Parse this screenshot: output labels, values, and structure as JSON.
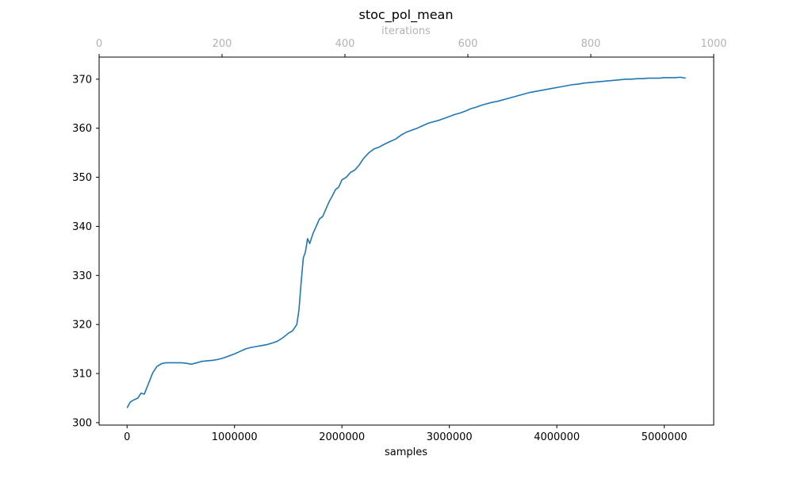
{
  "chart_data": {
    "type": "line",
    "title": "stoc_pol_mean",
    "xlabel": "samples",
    "x2label": "iterations",
    "ylabel": "",
    "xlim": [
      -260000,
      5460000
    ],
    "ylim": [
      299.5,
      374.5
    ],
    "x2lim": [
      0,
      1000
    ],
    "xticks": [
      0,
      1000000,
      2000000,
      3000000,
      4000000,
      5000000
    ],
    "xtick_labels": [
      "0",
      "1000000",
      "2000000",
      "3000000",
      "4000000",
      "5000000"
    ],
    "yticks": [
      300,
      310,
      320,
      330,
      340,
      350,
      360,
      370
    ],
    "ytick_labels": [
      "300",
      "310",
      "320",
      "330",
      "340",
      "350",
      "360",
      "370"
    ],
    "x2ticks": [
      0,
      200,
      400,
      600,
      800,
      1000
    ],
    "x2tick_labels": [
      "0",
      "200",
      "400",
      "600",
      "800",
      "1000"
    ],
    "grid": false,
    "line_color": "#1f77b4",
    "secondary_axis_color": "#b3b3b3",
    "series": [
      {
        "x": [
          0,
          30000,
          60000,
          100000,
          130000,
          160000,
          200000,
          240000,
          280000,
          320000,
          360000,
          400000,
          450000,
          500000,
          550000,
          600000,
          650000,
          700000,
          750000,
          800000,
          850000,
          900000,
          950000,
          1000000,
          1050000,
          1100000,
          1150000,
          1200000,
          1250000,
          1300000,
          1350000,
          1400000,
          1450000,
          1500000,
          1540000,
          1580000,
          1600000,
          1620000,
          1640000,
          1660000,
          1680000,
          1700000,
          1730000,
          1760000,
          1790000,
          1820000,
          1850000,
          1880000,
          1910000,
          1940000,
          1970000,
          2000000,
          2040000,
          2080000,
          2120000,
          2160000,
          2200000,
          2250000,
          2300000,
          2350000,
          2400000,
          2450000,
          2500000,
          2550000,
          2600000,
          2650000,
          2700000,
          2750000,
          2800000,
          2850000,
          2900000,
          2950000,
          3000000,
          3050000,
          3100000,
          3150000,
          3200000,
          3250000,
          3300000,
          3350000,
          3400000,
          3450000,
          3500000,
          3550000,
          3600000,
          3650000,
          3700000,
          3750000,
          3800000,
          3850000,
          3900000,
          3950000,
          4000000,
          4050000,
          4100000,
          4150000,
          4200000,
          4250000,
          4300000,
          4350000,
          4400000,
          4450000,
          4500000,
          4550000,
          4600000,
          4650000,
          4700000,
          4750000,
          4800000,
          4850000,
          4900000,
          4950000,
          5000000,
          5050000,
          5100000,
          5150000,
          5200000
        ],
        "y": [
          303.0,
          304.2,
          304.6,
          305.0,
          306.0,
          305.8,
          308.0,
          310.2,
          311.5,
          312.0,
          312.2,
          312.2,
          312.2,
          312.2,
          312.1,
          311.9,
          312.2,
          312.5,
          312.6,
          312.7,
          312.9,
          313.2,
          313.6,
          314.0,
          314.5,
          315.0,
          315.3,
          315.5,
          315.7,
          315.9,
          316.2,
          316.6,
          317.3,
          318.2,
          318.7,
          320.0,
          323.0,
          328.5,
          333.5,
          334.8,
          337.5,
          336.5,
          338.5,
          340.0,
          341.5,
          342.0,
          343.5,
          345.0,
          346.2,
          347.5,
          348.0,
          349.5,
          350.0,
          351.0,
          351.5,
          352.5,
          353.8,
          355.0,
          355.8,
          356.2,
          356.8,
          357.3,
          357.8,
          358.6,
          359.2,
          359.6,
          360.0,
          360.5,
          361.0,
          361.3,
          361.6,
          362.0,
          362.4,
          362.8,
          363.1,
          363.5,
          364.0,
          364.3,
          364.7,
          365.0,
          365.3,
          365.5,
          365.8,
          366.1,
          366.4,
          366.7,
          367.0,
          367.3,
          367.5,
          367.7,
          367.9,
          368.1,
          368.3,
          368.5,
          368.7,
          368.9,
          369.0,
          369.2,
          369.3,
          369.4,
          369.5,
          369.6,
          369.7,
          369.8,
          369.9,
          370.0,
          370.0,
          370.1,
          370.1,
          370.2,
          370.2,
          370.2,
          370.3,
          370.3,
          370.3,
          370.4,
          370.2
        ]
      }
    ]
  }
}
